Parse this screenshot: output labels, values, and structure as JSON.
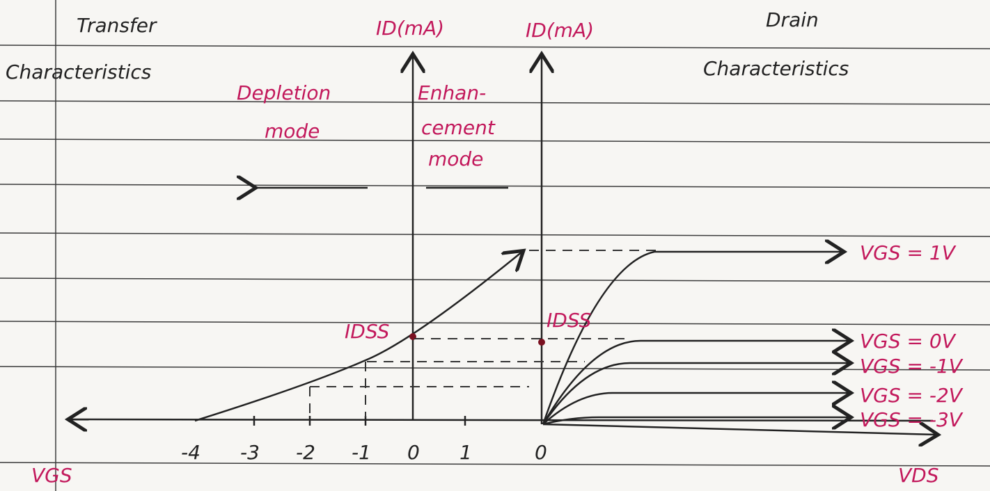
{
  "header": {
    "left_title": [
      "Transfer",
      "Characteristics"
    ],
    "right_title": [
      "Drain",
      "Characteristics"
    ]
  },
  "transfer": {
    "y_axis_label": "ID(mA)",
    "x_axis_label": "VGS",
    "depletion": [
      "Depletion",
      "mode"
    ],
    "enhancement": [
      "Enhan-",
      "cement",
      "mode"
    ],
    "idss": "IDSS",
    "x_ticks": [
      "-4",
      "-3",
      "-2",
      "-1",
      "0",
      "1"
    ]
  },
  "drain": {
    "y_axis_label": "ID(mA)",
    "x_axis_label": "VDS",
    "origin": "0",
    "idss": "IDSS",
    "curves": [
      "VGS = 1V",
      "VGS = 0V",
      "VGS = -1V",
      "VGS = -2V",
      "VGS = -3V"
    ]
  }
}
